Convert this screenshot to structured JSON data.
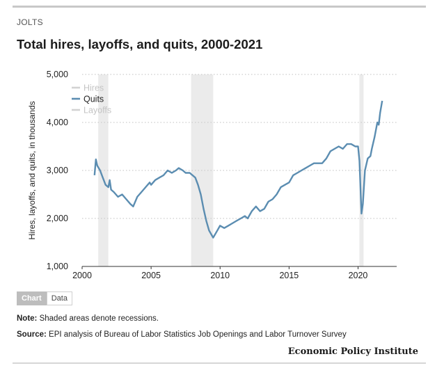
{
  "header": {
    "kicker": "JOLTS",
    "title": "Total hires, layoffs, and quits, 2000-2021"
  },
  "toggle": {
    "chart_label": "Chart",
    "data_label": "Data"
  },
  "footer": {
    "note_label": "Note:",
    "note_text": "Shaded areas denote recessions.",
    "source_label": "Source:",
    "source_text": "EPI analysis of Bureau of Labor Statistics Job Openings and Labor Turnover Survey",
    "brand": "Economic Policy Institute"
  },
  "colors": {
    "quits": "#5b8db1",
    "inactive_legend": "#d2d2d2",
    "recession": "#ebebeb",
    "grid": "#cccccc"
  },
  "chart_data": {
    "type": "line",
    "title": "Total hires, layoffs, and quits, 2000-2021",
    "xlabel": "",
    "ylabel": "Hires, layoffs, and quits, in thousands",
    "xlim": [
      2000,
      2022.8
    ],
    "ylim": [
      1000,
      5000
    ],
    "xticks": [
      2000,
      2005,
      2010,
      2015,
      2020
    ],
    "xtick_labels": [
      "2000",
      "2005",
      "2010",
      "2015",
      "2020"
    ],
    "yticks": [
      1000,
      2000,
      3000,
      4000,
      5000
    ],
    "ytick_labels": [
      "1,000",
      "2,000",
      "3,000",
      "4,000",
      "5,000"
    ],
    "recessions": [
      [
        2001.17,
        2001.9
      ],
      [
        2007.9,
        2009.5
      ],
      [
        2020.1,
        2020.4
      ]
    ],
    "legend": [
      {
        "name": "Hires",
        "active": false
      },
      {
        "name": "Quits",
        "active": true
      },
      {
        "name": "Layoffs",
        "active": false
      }
    ],
    "series": [
      {
        "name": "Quits",
        "x": [
          2000.9,
          2001.0,
          2001.1,
          2001.3,
          2001.5,
          2001.7,
          2001.9,
          2002.0,
          2002.1,
          2002.3,
          2002.6,
          2002.9,
          2003.2,
          2003.5,
          2003.7,
          2004.0,
          2004.3,
          2004.6,
          2004.9,
          2005.0,
          2005.3,
          2005.6,
          2005.9,
          2006.2,
          2006.5,
          2006.8,
          2007.0,
          2007.3,
          2007.5,
          2007.8,
          2008.0,
          2008.2,
          2008.4,
          2008.6,
          2008.8,
          2009.0,
          2009.2,
          2009.5,
          2009.8,
          2010.0,
          2010.3,
          2010.6,
          2010.9,
          2011.2,
          2011.5,
          2011.8,
          2012.0,
          2012.3,
          2012.6,
          2012.9,
          2013.2,
          2013.5,
          2013.8,
          2014.1,
          2014.4,
          2014.7,
          2015.0,
          2015.3,
          2015.6,
          2015.9,
          2016.2,
          2016.5,
          2016.8,
          2017.1,
          2017.4,
          2017.7,
          2018.0,
          2018.3,
          2018.6,
          2018.9,
          2019.2,
          2019.5,
          2019.8,
          2020.0,
          2020.1,
          2020.25,
          2020.35,
          2020.5,
          2020.7,
          2020.9,
          2021.0,
          2021.2,
          2021.4,
          2021.5,
          2021.6,
          2021.75
        ],
        "values": [
          2900,
          3230,
          3100,
          3000,
          2850,
          2700,
          2650,
          2800,
          2600,
          2550,
          2450,
          2500,
          2400,
          2300,
          2250,
          2450,
          2550,
          2650,
          2750,
          2700,
          2800,
          2850,
          2900,
          3000,
          2950,
          3000,
          3050,
          3000,
          2950,
          2950,
          2900,
          2850,
          2700,
          2500,
          2200,
          1950,
          1750,
          1600,
          1750,
          1850,
          1800,
          1850,
          1900,
          1950,
          2000,
          2050,
          2000,
          2150,
          2250,
          2150,
          2200,
          2350,
          2400,
          2500,
          2650,
          2700,
          2750,
          2900,
          2950,
          3000,
          3050,
          3100,
          3150,
          3150,
          3150,
          3250,
          3400,
          3450,
          3500,
          3450,
          3550,
          3550,
          3500,
          3500,
          3200,
          2100,
          2300,
          3000,
          3250,
          3300,
          3450,
          3700,
          4000,
          3950,
          4200,
          4450
        ]
      }
    ]
  }
}
